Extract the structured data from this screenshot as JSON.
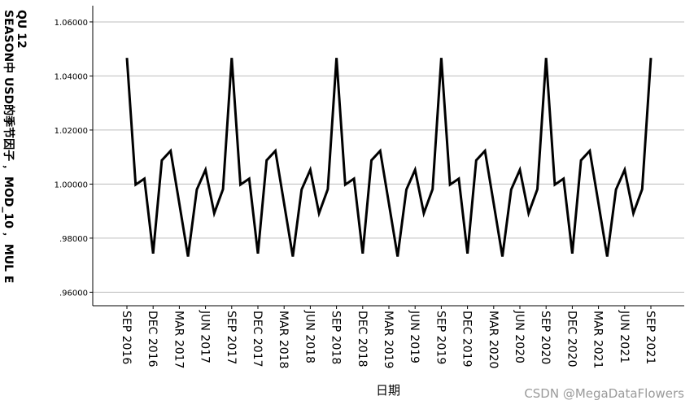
{
  "chart_data": {
    "type": "line",
    "ylabel_lines": [
      "QU 12",
      "SEASON中 USD的季节因子﹐ MOD_10﹐ MUL E"
    ],
    "xlabel": "日期",
    "ylim": [
      0.955,
      1.066
    ],
    "yticks": [
      ".96000",
      ".98000",
      "1.00000",
      "1.02000",
      "1.04000",
      "1.06000"
    ],
    "ytick_values": [
      0.96,
      0.98,
      1.0,
      1.02,
      1.04,
      1.06
    ],
    "xtick_labels": [
      "SEP 2016",
      "DEC 2016",
      "MAR 2017",
      "JUN 2017",
      "SEP 2017",
      "DEC 2017",
      "MAR 2018",
      "JUN 2018",
      "SEP 2018",
      "DEC 2018",
      "MAR 2019",
      "JUN 2019",
      "SEP 2019",
      "DEC 2019",
      "MAR 2020",
      "JUN 2020",
      "SEP 2020",
      "DEC 2020",
      "MAR 2021",
      "JUN 2021",
      "SEP 2021"
    ],
    "series": [
      {
        "line_color": "#000000",
        "x": [
          "SEP 2016",
          "OCT 2016",
          "NOV 2016",
          "DEC 2016",
          "JAN 2017",
          "FEB 2017",
          "MAR 2017",
          "APR 2017",
          "MAY 2017",
          "JUN 2017",
          "JUL 2017",
          "AUG 2017",
          "SEP 2017",
          "OCT 2017",
          "NOV 2017",
          "DEC 2017",
          "JAN 2018",
          "FEB 2018",
          "MAR 2018",
          "APR 2018",
          "MAY 2018",
          "JUN 2018",
          "JUL 2018",
          "AUG 2018",
          "SEP 2018",
          "OCT 2018",
          "NOV 2018",
          "DEC 2018",
          "JAN 2019",
          "FEB 2019",
          "MAR 2019",
          "APR 2019",
          "MAY 2019",
          "JUN 2019",
          "JUL 2019",
          "AUG 2019",
          "SEP 2019",
          "OCT 2019",
          "NOV 2019",
          "DEC 2019",
          "JAN 2020",
          "FEB 2020",
          "MAR 2020",
          "APR 2020",
          "MAY 2020",
          "JUN 2020",
          "JUL 2020",
          "AUG 2020",
          "SEP 2020",
          "OCT 2020",
          "NOV 2020",
          "DEC 2020",
          "JAN 2021",
          "FEB 2021",
          "MAR 2021",
          "APR 2021",
          "MAY 2021",
          "JUN 2021",
          "JUL 2021",
          "AUG 2021",
          "SEP 2021"
        ],
        "values": [
          1.0467,
          0.9998,
          1.002,
          0.9743,
          1.0088,
          1.0123,
          0.9928,
          0.9732,
          0.998,
          1.0053,
          0.9892,
          0.9981,
          1.0467,
          0.9998,
          1.002,
          0.9743,
          1.0088,
          1.0123,
          0.9928,
          0.9732,
          0.998,
          1.0053,
          0.9892,
          0.9981,
          1.0467,
          0.9998,
          1.002,
          0.9743,
          1.0088,
          1.0123,
          0.9928,
          0.9732,
          0.998,
          1.0053,
          0.9892,
          0.9981,
          1.0467,
          0.9998,
          1.002,
          0.9743,
          1.0088,
          1.0123,
          0.9928,
          0.9732,
          0.998,
          1.0053,
          0.9892,
          0.9981,
          1.0467,
          0.9998,
          1.002,
          0.9743,
          1.0088,
          1.0123,
          0.9928,
          0.9732,
          0.998,
          1.0053,
          0.9892,
          0.9981,
          1.0467
        ]
      }
    ],
    "grid": "horizontal"
  },
  "watermark": "CSDN @MegaDataFlowers"
}
